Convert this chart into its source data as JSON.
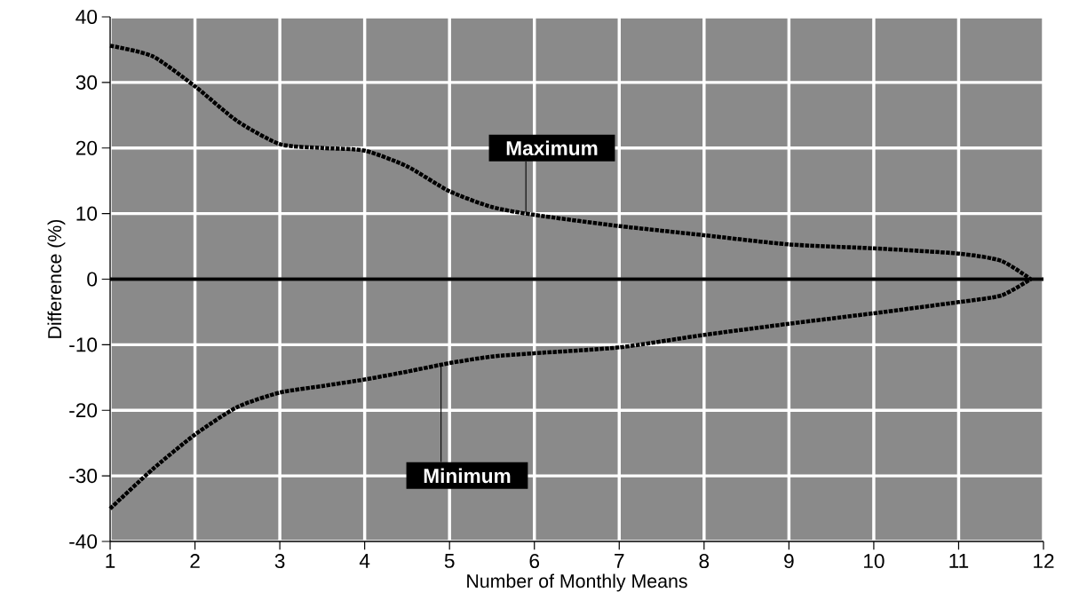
{
  "chart_data": {
    "type": "line",
    "xlabel": "Number of Monthly Means",
    "ylabel": "Difference (%)",
    "xlim": [
      1,
      12
    ],
    "ylim": [
      -40,
      40
    ],
    "xticks": [
      1,
      2,
      3,
      4,
      5,
      6,
      7,
      8,
      9,
      10,
      11,
      12
    ],
    "yticks": [
      -40,
      -30,
      -20,
      -10,
      0,
      10,
      20,
      30,
      40
    ],
    "grid": true,
    "line_style": "dotted",
    "marker": "none",
    "series": [
      {
        "color": "#000000",
        "x": [
          1,
          1.5,
          2,
          2.5,
          3,
          3.5,
          4,
          4.5,
          5,
          5.5,
          6,
          7,
          8,
          9,
          10,
          11,
          11.5,
          11.85
        ],
        "values": [
          35.6,
          34,
          29.4,
          24.1,
          20.6,
          20,
          19.6,
          17.2,
          13.4,
          11,
          9.8,
          8.1,
          6.7,
          5.3,
          4.7,
          3.9,
          2.8,
          0
        ]
      },
      {
        "color": "#000000",
        "x": [
          1,
          1.5,
          2,
          2.5,
          3,
          3.5,
          4,
          4.5,
          5,
          5.5,
          6,
          7,
          8,
          9,
          10,
          11,
          11.5,
          11.85
        ],
        "values": [
          -35,
          -29,
          -23.7,
          -19.5,
          -17.3,
          -16.3,
          -15.3,
          -14.1,
          -12.8,
          -11.8,
          -11.3,
          -10.4,
          -8.5,
          -6.8,
          -5.2,
          -3.5,
          -2.5,
          0
        ]
      }
    ],
    "ref_lines": [
      {
        "axis": "y",
        "value": 0,
        "color": "#000000"
      }
    ],
    "annotations": [
      {
        "text": "Maximum",
        "x": 5.9,
        "y": 10
      },
      {
        "text": "Minimum",
        "x": 4.9,
        "y": -13
      }
    ]
  }
}
